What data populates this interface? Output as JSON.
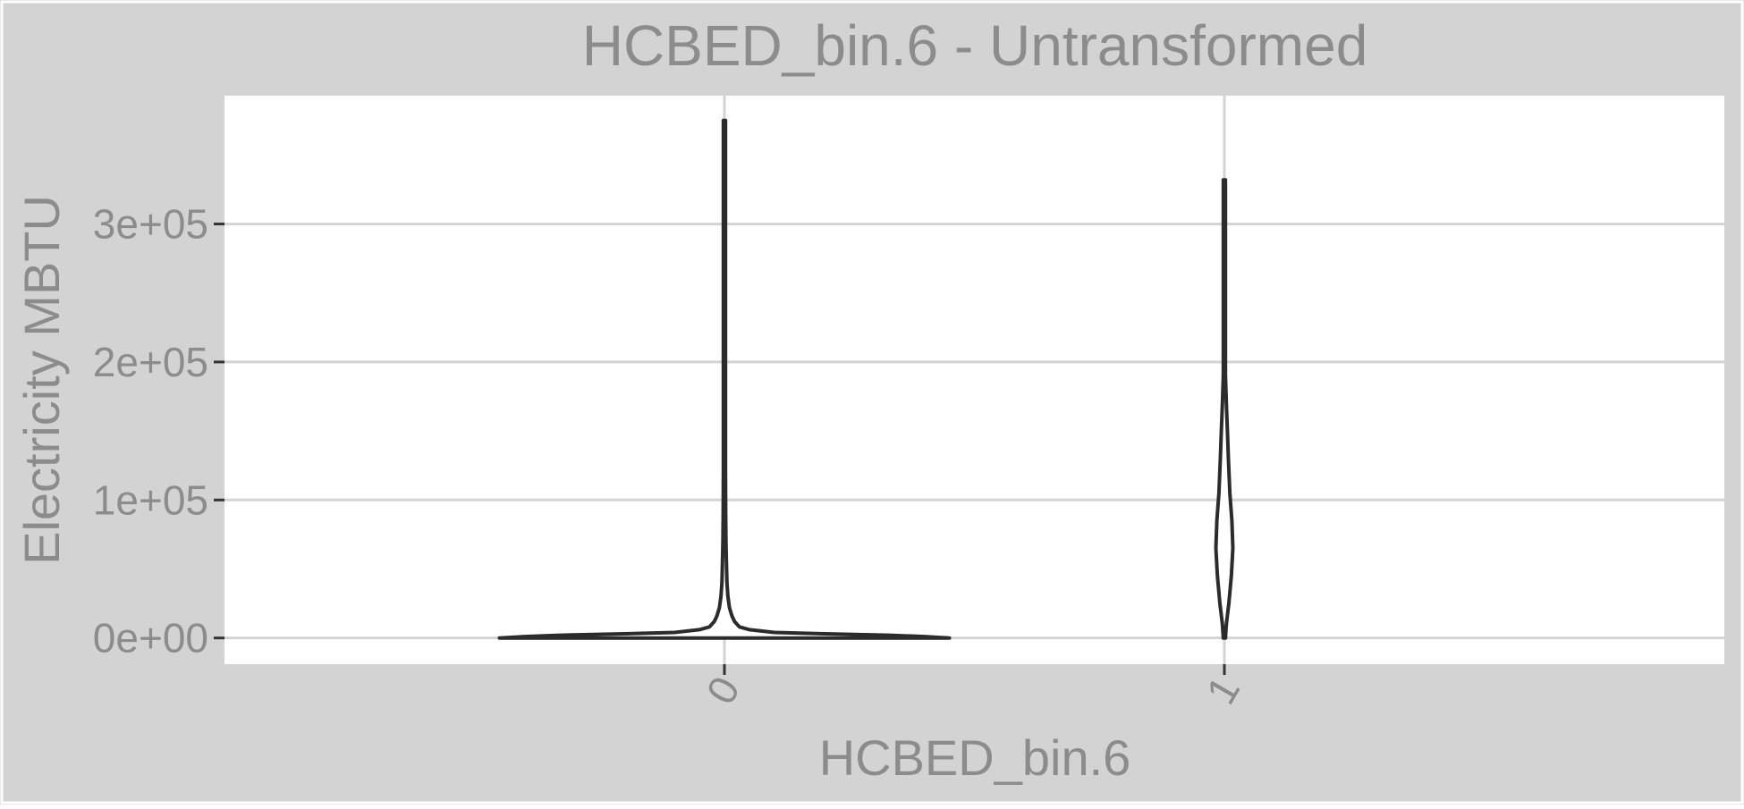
{
  "chart_data": {
    "type": "violin",
    "title": "HCBED_bin.6 - Untransformed",
    "xlabel": "HCBED_bin.6",
    "ylabel": "Electricity MBTU",
    "categories": [
      "0",
      "1"
    ],
    "y_ticks": [
      {
        "value": 0,
        "label": "0e+00"
      },
      {
        "value": 100000,
        "label": "1e+05"
      },
      {
        "value": 200000,
        "label": "2e+05"
      },
      {
        "value": 300000,
        "label": "3e+05"
      }
    ],
    "ylim": [
      -19000,
      393000
    ],
    "grid": true,
    "legend": "none",
    "series": [
      {
        "category": "0",
        "min": 0,
        "max": 375000,
        "density_profile": [
          {
            "y": 0,
            "halfwidth": 0.45
          },
          {
            "y": 1000,
            "halfwidth": 0.4
          },
          {
            "y": 2000,
            "halfwidth": 0.33
          },
          {
            "y": 3000,
            "halfwidth": 0.2
          },
          {
            "y": 4000,
            "halfwidth": 0.1
          },
          {
            "y": 6000,
            "halfwidth": 0.05
          },
          {
            "y": 8000,
            "halfwidth": 0.03
          },
          {
            "y": 12000,
            "halfwidth": 0.02
          },
          {
            "y": 16000,
            "halfwidth": 0.015
          },
          {
            "y": 22000,
            "halfwidth": 0.01
          },
          {
            "y": 30000,
            "halfwidth": 0.007
          },
          {
            "y": 40000,
            "halfwidth": 0.005
          },
          {
            "y": 55000,
            "halfwidth": 0.004
          },
          {
            "y": 70000,
            "halfwidth": 0.003
          },
          {
            "y": 90000,
            "halfwidth": 0.0025
          },
          {
            "y": 120000,
            "halfwidth": 0.002
          },
          {
            "y": 160000,
            "halfwidth": 0.0015
          },
          {
            "y": 220000,
            "halfwidth": 0.0012
          },
          {
            "y": 300000,
            "halfwidth": 0.001
          },
          {
            "y": 375000,
            "halfwidth": 0.0
          }
        ]
      },
      {
        "category": "1",
        "min": 0,
        "max": 332000,
        "density_profile": [
          {
            "y": 0,
            "halfwidth": 0.0
          },
          {
            "y": 10000,
            "halfwidth": 0.004
          },
          {
            "y": 25000,
            "halfwidth": 0.009
          },
          {
            "y": 45000,
            "halfwidth": 0.014
          },
          {
            "y": 65000,
            "halfwidth": 0.017
          },
          {
            "y": 85000,
            "halfwidth": 0.015
          },
          {
            "y": 105000,
            "halfwidth": 0.011
          },
          {
            "y": 130000,
            "halfwidth": 0.008
          },
          {
            "y": 150000,
            "halfwidth": 0.006
          },
          {
            "y": 170000,
            "halfwidth": 0.004
          },
          {
            "y": 190000,
            "halfwidth": 0.002
          },
          {
            "y": 220000,
            "halfwidth": 0.0012
          },
          {
            "y": 260000,
            "halfwidth": 0.0007
          },
          {
            "y": 300000,
            "halfwidth": 0.0004
          },
          {
            "y": 332000,
            "halfwidth": 0.0
          }
        ]
      }
    ]
  }
}
